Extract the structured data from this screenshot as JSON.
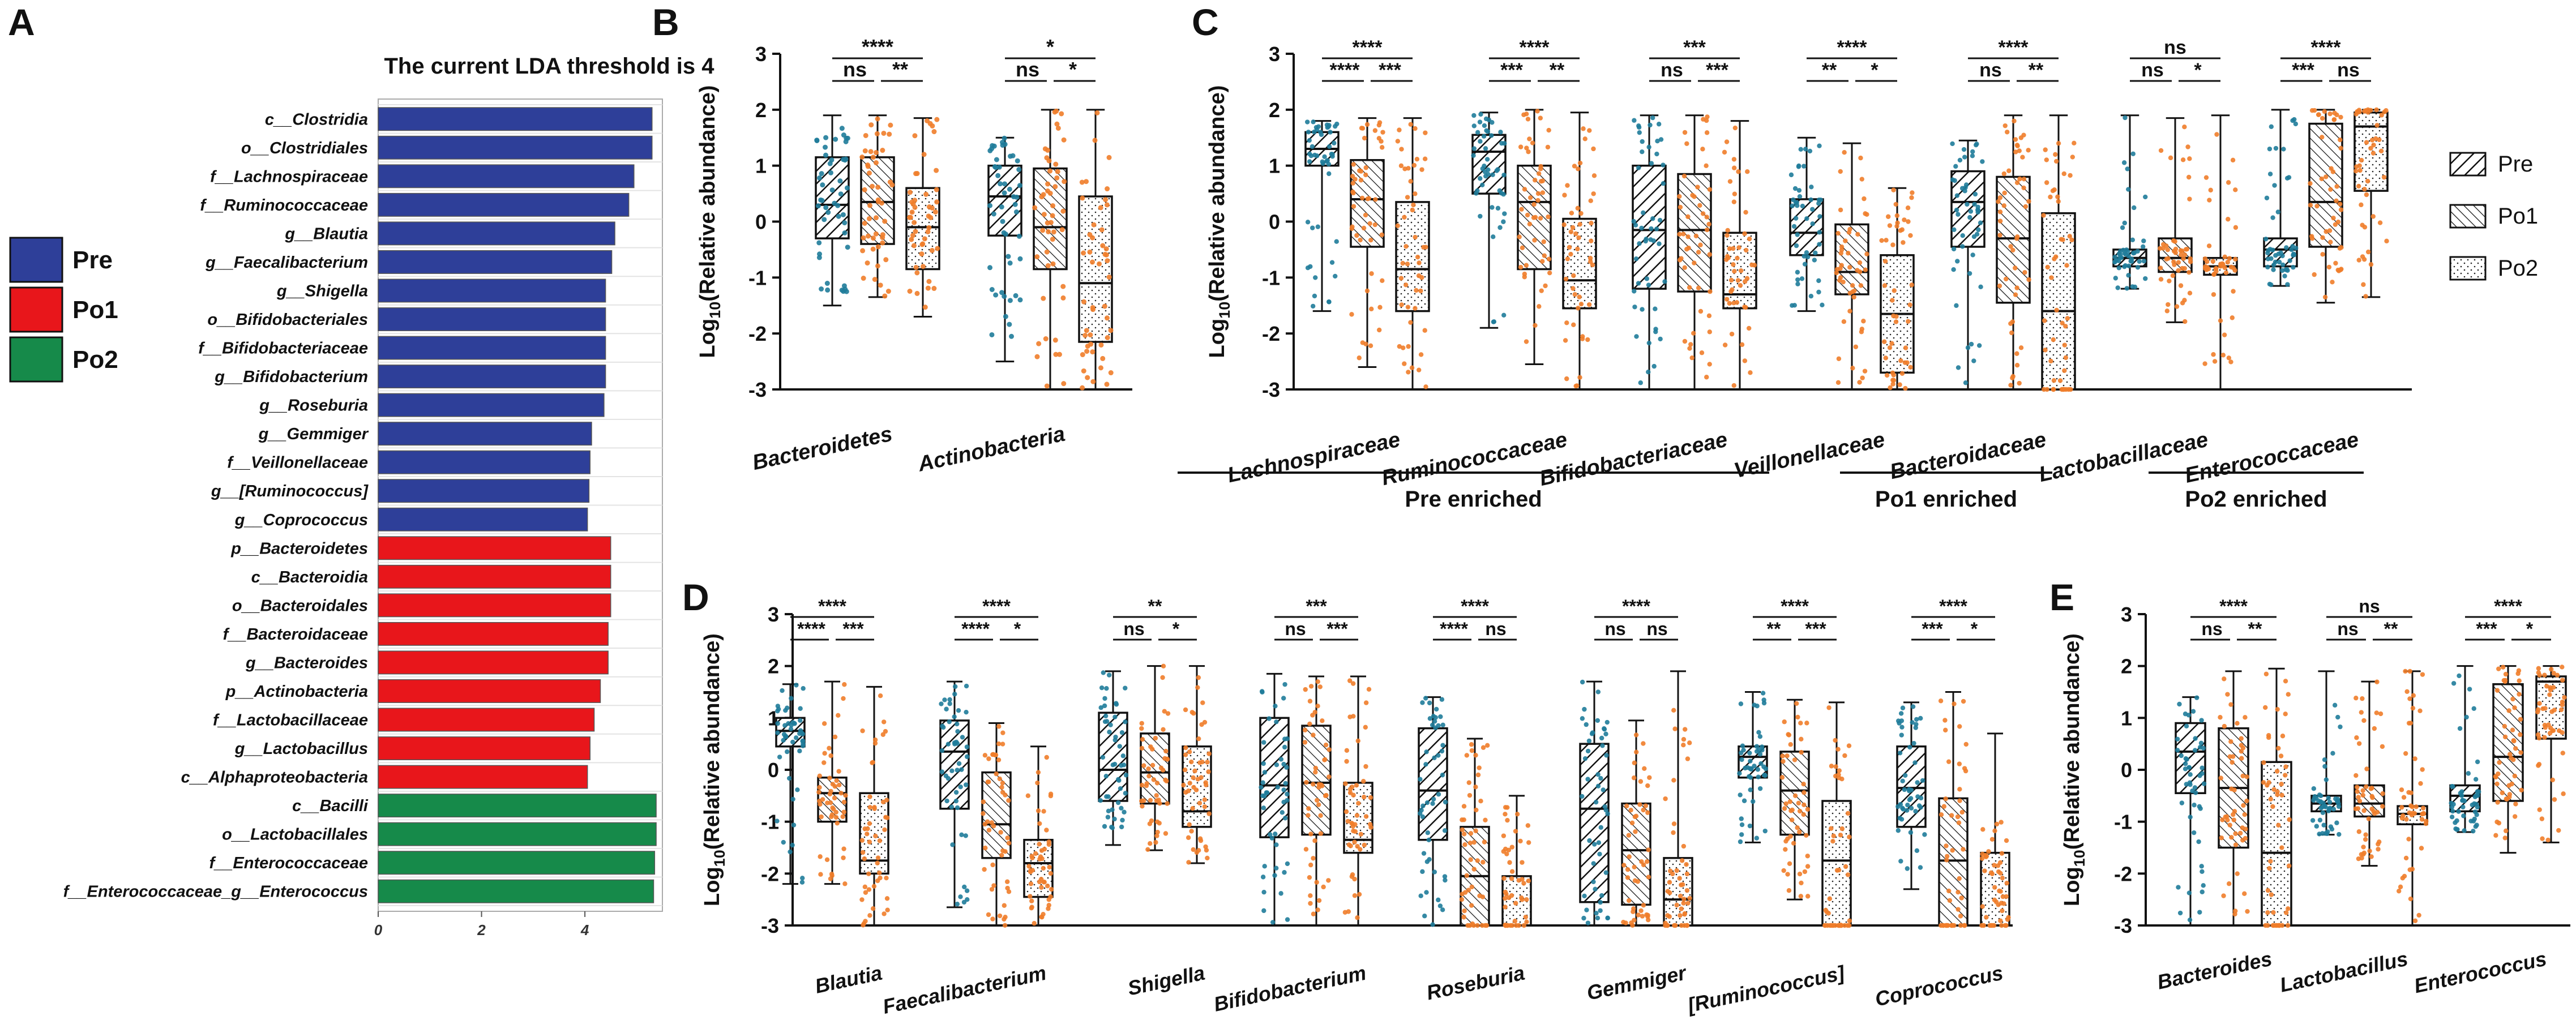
{
  "colors": {
    "pre": "#2e3f99",
    "po1": "#e8161b",
    "po2": "#168a4a",
    "teal": "#1f7c9a",
    "orange": "#f07d2a",
    "ink": "#111111"
  },
  "panel_labels": {
    "A": "A",
    "B": "B",
    "C": "C",
    "D": "D",
    "E": "E"
  },
  "legend_lda": [
    {
      "label": "Pre",
      "color": "#2e3f99"
    },
    {
      "label": "Po1",
      "color": "#e8161b"
    },
    {
      "label": "Po2",
      "color": "#168a4a"
    }
  ],
  "legend_box": [
    {
      "label": "Pre",
      "pattern": "pre"
    },
    {
      "label": "Po1",
      "pattern": "po1"
    },
    {
      "label": "Po2",
      "pattern": "po2"
    }
  ],
  "ylabel_main": "Log",
  "ylabel_sub": "10",
  "ylabel_rest": "(Relative abundance)",
  "chart_data": [
    {
      "id": "A",
      "type": "bar",
      "orientation": "horizontal",
      "title": "The current LDA threshold is 4",
      "xlim": [
        0,
        5.5
      ],
      "xticks": [
        0,
        2,
        4
      ],
      "items": [
        {
          "label": "c__Clostridia",
          "value": 5.3,
          "group": "pre"
        },
        {
          "label": "o__Clostridiales",
          "value": 5.3,
          "group": "pre"
        },
        {
          "label": "f__Lachnospiraceae",
          "value": 4.95,
          "group": "pre"
        },
        {
          "label": "f__Ruminococcaceae",
          "value": 4.85,
          "group": "pre"
        },
        {
          "label": "g__Blautia",
          "value": 4.58,
          "group": "pre"
        },
        {
          "label": "g__Faecalibacterium",
          "value": 4.52,
          "group": "pre"
        },
        {
          "label": "g__Shigella",
          "value": 4.4,
          "group": "pre"
        },
        {
          "label": "o__Bifidobacteriales",
          "value": 4.4,
          "group": "pre"
        },
        {
          "label": "f__Bifidobacteriaceae",
          "value": 4.4,
          "group": "pre"
        },
        {
          "label": "g__Bifidobacterium",
          "value": 4.4,
          "group": "pre"
        },
        {
          "label": "g__Roseburia",
          "value": 4.37,
          "group": "pre"
        },
        {
          "label": "g__Gemmiger",
          "value": 4.13,
          "group": "pre"
        },
        {
          "label": "f__Veillonellaceae",
          "value": 4.1,
          "group": "pre"
        },
        {
          "label": "g__[Ruminococcus]",
          "value": 4.08,
          "group": "pre"
        },
        {
          "label": "g__Coprococcus",
          "value": 4.05,
          "group": "pre"
        },
        {
          "label": "p__Bacteroidetes",
          "value": 4.5,
          "group": "po1"
        },
        {
          "label": "c__Bacteroidia",
          "value": 4.5,
          "group": "po1"
        },
        {
          "label": "o__Bacteroidales",
          "value": 4.5,
          "group": "po1"
        },
        {
          "label": "f__Bacteroidaceae",
          "value": 4.45,
          "group": "po1"
        },
        {
          "label": "g__Bacteroides",
          "value": 4.45,
          "group": "po1"
        },
        {
          "label": "p__Actinobacteria",
          "value": 4.3,
          "group": "po1"
        },
        {
          "label": "f__Lactobacillaceae",
          "value": 4.18,
          "group": "po1"
        },
        {
          "label": "g__Lactobacillus",
          "value": 4.1,
          "group": "po1"
        },
        {
          "label": "c__Alphaproteobacteria",
          "value": 4.05,
          "group": "po1"
        },
        {
          "label": "c__Bacilli",
          "value": 5.38,
          "group": "po2"
        },
        {
          "label": "o__Lactobacillales",
          "value": 5.38,
          "group": "po2"
        },
        {
          "label": "f__Enterococcaceae",
          "value": 5.35,
          "group": "po2"
        },
        {
          "label": "f__Enterococcaceae_g__Enterococcus",
          "value": 5.33,
          "group": "po2"
        }
      ]
    },
    {
      "id": "B",
      "type": "box",
      "ylim": [
        -3,
        3
      ],
      "yticks": [
        -3,
        -2,
        -1,
        0,
        1,
        2,
        3
      ],
      "ylabel": "Log10(Relative abundance)",
      "groups": [
        {
          "label": "Bacteroidetes",
          "boxes": [
            {
              "q1": -0.3,
              "median": 0.3,
              "q3": 1.15,
              "min": -1.5,
              "max": 1.9
            },
            {
              "q1": -0.4,
              "median": 0.35,
              "q3": 1.15,
              "min": -1.35,
              "max": 1.9
            },
            {
              "q1": -0.85,
              "median": -0.1,
              "q3": 0.6,
              "min": -1.7,
              "max": 1.85
            }
          ],
          "sig": {
            "top": "****",
            "left": "ns",
            "right": "**"
          }
        },
        {
          "label": "Actinobacteria",
          "boxes": [
            {
              "q1": -0.25,
              "median": 0.45,
              "q3": 1.0,
              "min": -2.5,
              "max": 1.5
            },
            {
              "q1": -0.85,
              "median": -0.1,
              "q3": 0.95,
              "min": -3.0,
              "max": 2.0
            },
            {
              "q1": -2.15,
              "median": -1.1,
              "q3": 0.45,
              "min": -3.0,
              "max": 2.0
            }
          ],
          "sig": {
            "top": "*",
            "left": "ns",
            "right": "*"
          }
        }
      ]
    },
    {
      "id": "C",
      "type": "box",
      "ylim": [
        -3,
        3
      ],
      "yticks": [
        -3,
        -2,
        -1,
        0,
        1,
        2,
        3
      ],
      "ylabel": "Log10(Relative abundance)",
      "groups": [
        {
          "label": "Lachnospiraceae",
          "boxes": [
            {
              "q1": 1.0,
              "median": 1.3,
              "q3": 1.6,
              "min": -1.6,
              "max": 1.8
            },
            {
              "q1": -0.45,
              "median": 0.4,
              "q3": 1.1,
              "min": -2.6,
              "max": 1.85
            },
            {
              "q1": -1.6,
              "median": -0.85,
              "q3": 0.35,
              "min": -3.0,
              "max": 1.85
            }
          ],
          "sig": {
            "top": "****",
            "left": "****",
            "right": "***"
          }
        },
        {
          "label": "Ruminococcaceae",
          "boxes": [
            {
              "q1": 0.5,
              "median": 1.25,
              "q3": 1.55,
              "min": -1.9,
              "max": 1.95
            },
            {
              "q1": -0.85,
              "median": 0.35,
              "q3": 1.0,
              "min": -2.55,
              "max": 2.0
            },
            {
              "q1": -1.55,
              "median": -1.05,
              "q3": 0.05,
              "min": -3.0,
              "max": 1.95
            }
          ],
          "sig": {
            "top": "****",
            "left": "***",
            "right": "**"
          }
        },
        {
          "label": "Bifidobacteriaceae",
          "boxes": [
            {
              "q1": -1.2,
              "median": -0.15,
              "q3": 1.0,
              "min": -3.0,
              "max": 1.9
            },
            {
              "q1": -1.25,
              "median": -0.15,
              "q3": 0.85,
              "min": -3.0,
              "max": 1.9
            },
            {
              "q1": -1.55,
              "median": -1.3,
              "q3": -0.2,
              "min": -3.0,
              "max": 1.8
            }
          ],
          "sig": {
            "top": "***",
            "left": "ns",
            "right": "***"
          }
        },
        {
          "label": "Veillonellaceae",
          "boxes": [
            {
              "q1": -0.6,
              "median": -0.2,
              "q3": 0.4,
              "min": -1.6,
              "max": 1.5
            },
            {
              "q1": -1.3,
              "median": -0.9,
              "q3": -0.05,
              "min": -3.0,
              "max": 1.4
            },
            {
              "q1": -2.7,
              "median": -1.65,
              "q3": -0.6,
              "min": -3.0,
              "max": 0.6
            }
          ],
          "sig": {
            "top": "****",
            "left": "**",
            "right": "*"
          }
        },
        {
          "label": "Bacteroidaceae",
          "boxes": [
            {
              "q1": -0.45,
              "median": 0.35,
              "q3": 0.9,
              "min": -3.0,
              "max": 1.45
            },
            {
              "q1": -1.45,
              "median": -0.3,
              "q3": 0.8,
              "min": -3.0,
              "max": 1.9
            },
            {
              "q1": -3.0,
              "median": -1.6,
              "q3": 0.15,
              "min": -3.0,
              "max": 1.9
            }
          ],
          "sig": {
            "top": "****",
            "left": "ns",
            "right": "**"
          }
        },
        {
          "label": "Lactobacillaceae",
          "boxes": [
            {
              "q1": -0.8,
              "median": -0.65,
              "q3": -0.5,
              "min": -1.2,
              "max": 1.9
            },
            {
              "q1": -0.9,
              "median": -0.65,
              "q3": -0.3,
              "min": -1.8,
              "max": 1.85
            },
            {
              "q1": -0.95,
              "median": -0.8,
              "q3": -0.65,
              "min": -3.0,
              "max": 1.9
            }
          ],
          "sig": {
            "top": "ns",
            "left": "ns",
            "right": "*"
          }
        },
        {
          "label": "Enterococcaceae",
          "boxes": [
            {
              "q1": -0.8,
              "median": -0.5,
              "q3": -0.3,
              "min": -1.15,
              "max": 2.0
            },
            {
              "q1": -0.45,
              "median": 0.35,
              "q3": 1.75,
              "min": -1.45,
              "max": 2.0
            },
            {
              "q1": 0.55,
              "median": 1.7,
              "q3": 1.95,
              "min": -1.35,
              "max": 2.0
            }
          ],
          "sig": {
            "top": "****",
            "left": "***",
            "right": "ns"
          }
        }
      ],
      "brackets": [
        {
          "label": "Pre enriched",
          "from": 0,
          "to": 3
        },
        {
          "label": "Po1 enriched",
          "from": 4,
          "to": 4
        },
        {
          "label": "Po2 enriched",
          "from": 5,
          "to": 6
        }
      ]
    },
    {
      "id": "D",
      "type": "box",
      "ylim": [
        -3,
        3
      ],
      "yticks": [
        -3,
        -2,
        -1,
        0,
        1,
        2,
        3
      ],
      "ylabel": "Log10(Relative abundance)",
      "groups": [
        {
          "label": "Blautia",
          "boxes": [
            {
              "q1": 0.45,
              "median": 0.75,
              "q3": 1.0,
              "min": -2.2,
              "max": 1.65
            },
            {
              "q1": -1.0,
              "median": -0.45,
              "q3": -0.15,
              "min": -2.2,
              "max": 1.7
            },
            {
              "q1": -2.0,
              "median": -1.75,
              "q3": -0.45,
              "min": -3.0,
              "max": 1.6
            }
          ],
          "sig": {
            "top": "****",
            "left": "****",
            "right": "***"
          }
        },
        {
          "label": "Faecalibacterium",
          "boxes": [
            {
              "q1": -0.75,
              "median": 0.35,
              "q3": 0.95,
              "min": -2.65,
              "max": 1.7
            },
            {
              "q1": -1.7,
              "median": -1.05,
              "q3": -0.05,
              "min": -3.0,
              "max": 0.9
            },
            {
              "q1": -2.45,
              "median": -1.8,
              "q3": -1.35,
              "min": -3.0,
              "max": 0.45
            }
          ],
          "sig": {
            "top": "****",
            "left": "****",
            "right": "*"
          }
        },
        {
          "label": "Shigella",
          "boxes": [
            {
              "q1": -0.6,
              "median": 0.0,
              "q3": 1.1,
              "min": -1.45,
              "max": 1.9
            },
            {
              "q1": -0.65,
              "median": -0.05,
              "q3": 0.7,
              "min": -1.55,
              "max": 2.0
            },
            {
              "q1": -1.1,
              "median": -0.8,
              "q3": 0.45,
              "min": -1.8,
              "max": 2.0
            }
          ],
          "sig": {
            "top": "**",
            "left": "ns",
            "right": "*"
          }
        },
        {
          "label": "Bifidobacterium",
          "boxes": [
            {
              "q1": -1.3,
              "median": -0.3,
              "q3": 1.0,
              "min": -3.0,
              "max": 1.85
            },
            {
              "q1": -1.25,
              "median": -0.25,
              "q3": 0.85,
              "min": -3.0,
              "max": 1.8
            },
            {
              "q1": -1.6,
              "median": -1.35,
              "q3": -0.25,
              "min": -3.0,
              "max": 1.8
            }
          ],
          "sig": {
            "top": "***",
            "left": "ns",
            "right": "***"
          }
        },
        {
          "label": "Roseburia",
          "boxes": [
            {
              "q1": -1.35,
              "median": -0.4,
              "q3": 0.8,
              "min": -3.0,
              "max": 1.4
            },
            {
              "q1": -3.0,
              "median": -2.05,
              "q3": -1.1,
              "min": -3.0,
              "max": 0.6
            },
            {
              "q1": -3.0,
              "median": -3.0,
              "q3": -2.05,
              "min": -3.0,
              "max": -0.5
            }
          ],
          "sig": {
            "top": "****",
            "left": "****",
            "right": "ns"
          }
        },
        {
          "label": "Gemmiger",
          "boxes": [
            {
              "q1": -2.55,
              "median": -0.75,
              "q3": 0.5,
              "min": -3.0,
              "max": 1.7
            },
            {
              "q1": -2.6,
              "median": -1.55,
              "q3": -0.65,
              "min": -3.0,
              "max": 0.95
            },
            {
              "q1": -3.0,
              "median": -2.5,
              "q3": -1.7,
              "min": -3.0,
              "max": 1.9
            }
          ],
          "sig": {
            "top": "****",
            "left": "ns",
            "right": "ns"
          }
        },
        {
          "label": "[Ruminococcus]",
          "boxes": [
            {
              "q1": -0.15,
              "median": 0.25,
              "q3": 0.45,
              "min": -1.4,
              "max": 1.5
            },
            {
              "q1": -1.25,
              "median": -0.4,
              "q3": 0.35,
              "min": -2.5,
              "max": 1.35
            },
            {
              "q1": -3.0,
              "median": -1.75,
              "q3": -0.6,
              "min": -3.0,
              "max": 1.3
            }
          ],
          "sig": {
            "top": "****",
            "left": "**",
            "right": "***"
          }
        },
        {
          "label": "Coprococcus",
          "boxes": [
            {
              "q1": -1.1,
              "median": -0.35,
              "q3": 0.45,
              "min": -2.3,
              "max": 1.3
            },
            {
              "q1": -3.0,
              "median": -1.75,
              "q3": -0.55,
              "min": -3.0,
              "max": 1.5
            },
            {
              "q1": -3.0,
              "median": -3.0,
              "q3": -1.6,
              "min": -3.0,
              "max": 0.7
            }
          ],
          "sig": {
            "top": "****",
            "left": "***",
            "right": "*"
          }
        }
      ]
    },
    {
      "id": "E",
      "type": "box",
      "ylim": [
        -3,
        3
      ],
      "yticks": [
        -3,
        -2,
        -1,
        0,
        1,
        2,
        3
      ],
      "ylabel": "Log10(Relative abundance)",
      "groups": [
        {
          "label": "Bacteroides",
          "boxes": [
            {
              "q1": -0.45,
              "median": 0.35,
              "q3": 0.9,
              "min": -3.0,
              "max": 1.4
            },
            {
              "q1": -1.5,
              "median": -0.35,
              "q3": 0.8,
              "min": -3.0,
              "max": 1.9
            },
            {
              "q1": -3.0,
              "median": -1.6,
              "q3": 0.15,
              "min": -3.0,
              "max": 1.95
            }
          ],
          "sig": {
            "top": "****",
            "left": "ns",
            "right": "**"
          }
        },
        {
          "label": "Lactobacillus",
          "boxes": [
            {
              "q1": -0.8,
              "median": -0.65,
              "q3": -0.5,
              "min": -1.25,
              "max": 1.9
            },
            {
              "q1": -0.9,
              "median": -0.65,
              "q3": -0.3,
              "min": -1.85,
              "max": 1.7
            },
            {
              "q1": -1.05,
              "median": -0.85,
              "q3": -0.7,
              "min": -3.0,
              "max": 1.9
            }
          ],
          "sig": {
            "top": "ns",
            "left": "ns",
            "right": "**"
          }
        },
        {
          "label": "Enterococcus",
          "boxes": [
            {
              "q1": -0.8,
              "median": -0.5,
              "q3": -0.3,
              "min": -1.2,
              "max": 2.0
            },
            {
              "q1": -0.6,
              "median": 0.25,
              "q3": 1.65,
              "min": -1.6,
              "max": 2.0
            },
            {
              "q1": 0.6,
              "median": 1.7,
              "q3": 1.8,
              "min": -1.4,
              "max": 2.0
            }
          ],
          "sig": {
            "top": "****",
            "left": "***",
            "right": "*"
          }
        }
      ]
    }
  ]
}
